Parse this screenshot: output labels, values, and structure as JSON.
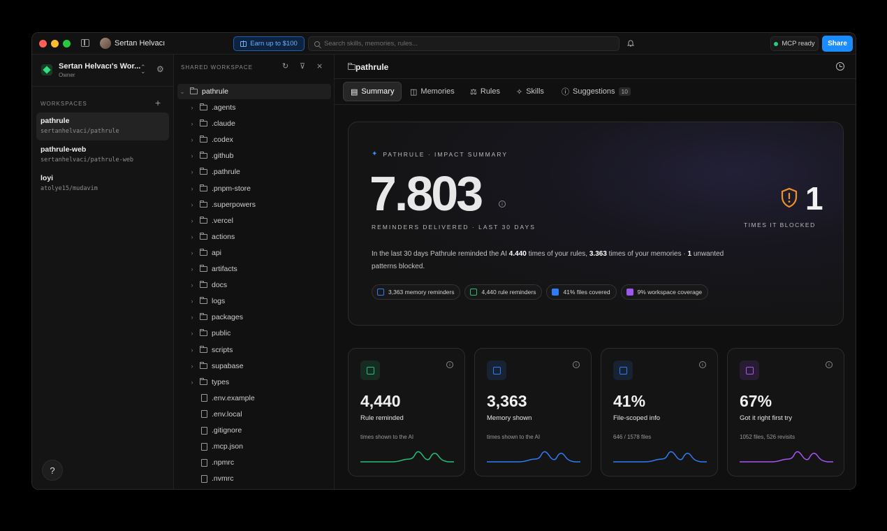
{
  "user": {
    "name": "Sertan Helvacı"
  },
  "topbar": {
    "earn_label": "Earn up to $100",
    "search_placeholder": "Search skills, memories, rules...",
    "mcp_label": "MCP ready",
    "share_label": "Share"
  },
  "workspace": {
    "name": "Sertan Helvacı's Wor...",
    "role": "Owner",
    "section_label": "WORKSPACES",
    "items": [
      {
        "name": "pathrule",
        "path": "sertanhelvaci/pathrule"
      },
      {
        "name": "pathrule-web",
        "path": "sertanhelvaci/pathrule-web"
      },
      {
        "name": "loyi",
        "path": "atolye15/mudavim"
      }
    ]
  },
  "tree": {
    "title": "SHARED WORKSPACE",
    "root": "pathrule",
    "folders": [
      ".agents",
      ".claude",
      ".codex",
      ".github",
      ".pathrule",
      ".pnpm-store",
      ".superpowers",
      ".vercel",
      "actions",
      "api",
      "artifacts",
      "docs",
      "logs",
      "packages",
      "public",
      "scripts",
      "supabase",
      "types"
    ],
    "files": [
      ".env.example",
      ".env.local",
      ".gitignore",
      ".mcp.json",
      ".npmrc",
      ".nvmrc"
    ]
  },
  "main": {
    "title": "pathrule",
    "tabs": [
      {
        "label": "Summary"
      },
      {
        "label": "Memories"
      },
      {
        "label": "Rules"
      },
      {
        "label": "Skills"
      },
      {
        "label": "Suggestions",
        "badge": "10"
      }
    ]
  },
  "impact": {
    "label": "PATHRULE · IMPACT SUMMARY",
    "big_value": "7.803",
    "big_label": "REMINDERS DELIVERED · LAST 30 DAYS",
    "desc_pre": "In the last 30 days Pathrule reminded the AI ",
    "desc_rules": "4.440",
    "desc_mid1": " times of your rules, ",
    "desc_mem": "3.363",
    "desc_mid2": " times of your memories · ",
    "desc_blocked": "1",
    "desc_post": " unwanted patterns blocked.",
    "blocked_value": "1",
    "blocked_label": "TIMES IT BLOCKED",
    "chips": [
      {
        "label": "3,363 memory reminders",
        "color": "#2f7cf6"
      },
      {
        "label": "4,440 rule reminders",
        "color": "#22c07a"
      },
      {
        "label": "41% files covered",
        "color": "#2f7cf6"
      },
      {
        "label": "9% workspace coverage",
        "color": "#9b59f0"
      }
    ]
  },
  "cards": [
    {
      "value": "4,440",
      "title": "Rule reminded",
      "sub": "times shown to the AI",
      "color": "#22c07a",
      "icon": "list-check-icon"
    },
    {
      "value": "3,363",
      "title": "Memory shown",
      "sub": "times shown to the AI",
      "color": "#2f7cf6",
      "icon": "book-icon"
    },
    {
      "value": "41%",
      "title": "File-scoped info",
      "sub": "646 / 1578 files",
      "color": "#2f7cf6",
      "icon": "file-icon"
    },
    {
      "value": "67%",
      "title": "Got it right first try",
      "sub": "1052 files, 526 revisits",
      "color": "#a855f7",
      "icon": "file-alert-icon"
    }
  ]
}
